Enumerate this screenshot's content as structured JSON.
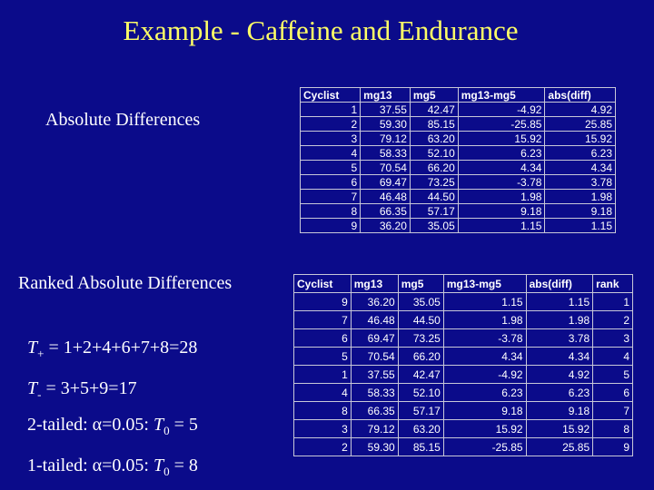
{
  "title": "Example - Caffeine and Endurance",
  "section1": {
    "label": "Absolute Differences",
    "table": {
      "header": [
        "Cyclist",
        "mg13",
        "mg5",
        "mg13-mg5",
        "abs(diff)"
      ],
      "rows": [
        [
          "1",
          "37.55",
          "42.47",
          "-4.92",
          "4.92"
        ],
        [
          "2",
          "59.30",
          "85.15",
          "-25.85",
          "25.85"
        ],
        [
          "3",
          "79.12",
          "63.20",
          "15.92",
          "15.92"
        ],
        [
          "4",
          "58.33",
          "52.10",
          "6.23",
          "6.23"
        ],
        [
          "5",
          "70.54",
          "66.20",
          "4.34",
          "4.34"
        ],
        [
          "6",
          "69.47",
          "73.25",
          "-3.78",
          "3.78"
        ],
        [
          "7",
          "46.48",
          "44.50",
          "1.98",
          "1.98"
        ],
        [
          "8",
          "66.35",
          "57.17",
          "9.18",
          "9.18"
        ],
        [
          "9",
          "36.20",
          "35.05",
          "1.15",
          "1.15"
        ]
      ]
    }
  },
  "section2": {
    "label": "Ranked Absolute Differences",
    "table": {
      "header": [
        "Cyclist",
        "mg13",
        "mg5",
        "mg13-mg5",
        "abs(diff)",
        "rank"
      ],
      "rows": [
        [
          "9",
          "36.20",
          "35.05",
          "1.15",
          "1.15",
          "1"
        ],
        [
          "7",
          "46.48",
          "44.50",
          "1.98",
          "1.98",
          "2"
        ],
        [
          "6",
          "69.47",
          "73.25",
          "-3.78",
          "3.78",
          "3"
        ],
        [
          "5",
          "70.54",
          "66.20",
          "4.34",
          "4.34",
          "4"
        ],
        [
          "1",
          "37.55",
          "42.47",
          "-4.92",
          "4.92",
          "5"
        ],
        [
          "4",
          "58.33",
          "52.10",
          "6.23",
          "6.23",
          "6"
        ],
        [
          "8",
          "66.35",
          "57.17",
          "9.18",
          "9.18",
          "7"
        ],
        [
          "3",
          "79.12",
          "63.20",
          "15.92",
          "15.92",
          "8"
        ],
        [
          "2",
          "59.30",
          "85.15",
          "-25.85",
          "25.85",
          "9"
        ]
      ]
    }
  },
  "lines": [
    {
      "var": "T",
      "sub": "+",
      "rest": " = 1+2+4+6+7+8=28"
    },
    {
      "var": "T",
      "sub": "-",
      "rest": " = 3+5+9=17"
    },
    {
      "lead": "2-tailed: α=0.05: ",
      "var": "T",
      "sub": "0",
      "rest": " = 5"
    },
    {
      "lead": "1-tailed: α=0.05: ",
      "var": "T",
      "sub": "0",
      "rest": " = 8"
    }
  ]
}
